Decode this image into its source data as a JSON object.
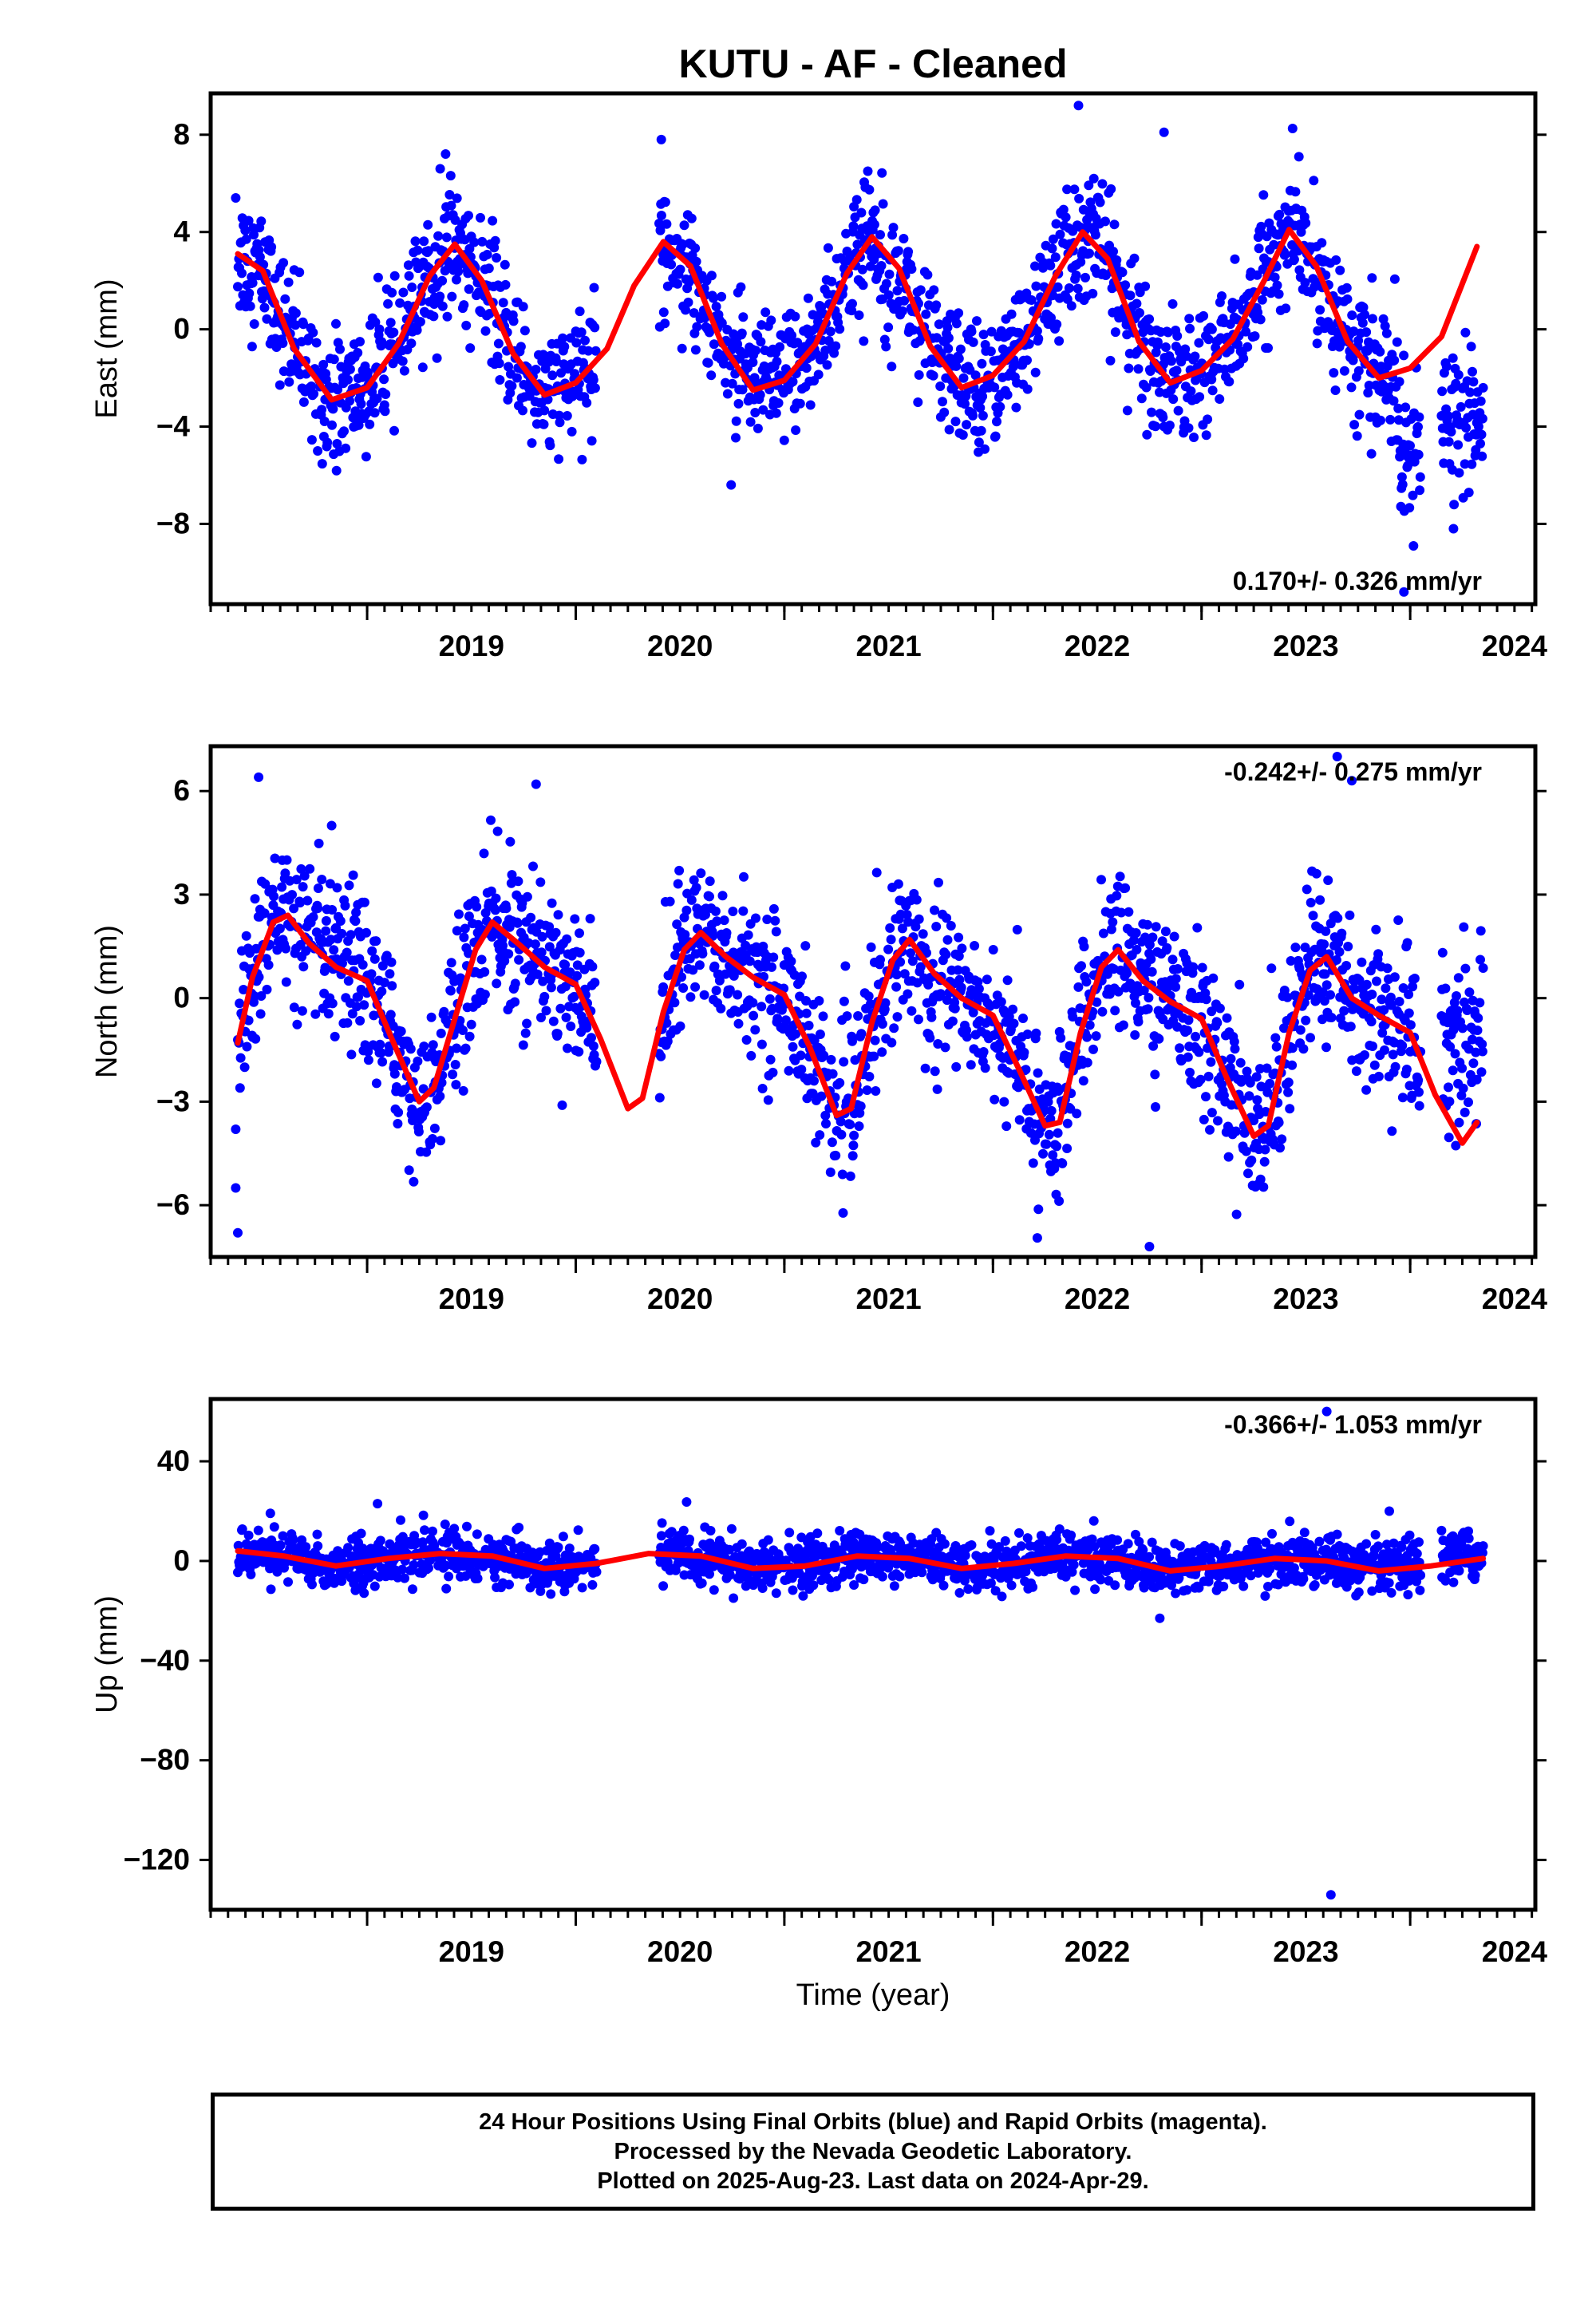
{
  "chart_data": {
    "type": "scatter",
    "title": "KUTU  - AF - Cleaned",
    "xlabel": "Time (year)",
    "xlim": [
      2018.25,
      2024.6
    ],
    "x_ticks": [
      2019,
      2020,
      2021,
      2022,
      2023,
      2024
    ],
    "x_tick_labels": [
      "2019",
      "2020",
      "2021",
      "2022",
      "2023",
      "2024"
    ],
    "colors": {
      "points": "#0000ff",
      "fit": "#ff0000",
      "axis": "#000000"
    },
    "panels": [
      {
        "name": "east",
        "ylabel": "East (mm)",
        "ylim": [
          -11.3,
          9.7
        ],
        "y_ticks": [
          -8,
          -4,
          0,
          4,
          8
        ],
        "y_tick_labels": [
          "−8",
          "−4",
          "0",
          "4",
          "8"
        ],
        "rate_text": "0.170+/- 0.326 mm/yr",
        "rate_position": "bottom-right",
        "fit_x": [
          2018.38,
          2018.5,
          2018.65,
          2018.83,
          2019.0,
          2019.15,
          2019.3,
          2019.42,
          2019.55,
          2019.7,
          2019.85,
          2020.0,
          2020.15,
          2020.28,
          2020.42,
          2020.55,
          2020.7,
          2020.85,
          2021.0,
          2021.15,
          2021.3,
          2021.42,
          2021.55,
          2021.7,
          2021.85,
          2022.0,
          2022.15,
          2022.3,
          2022.43,
          2022.55,
          2022.7,
          2022.85,
          2023.0,
          2023.15,
          2023.3,
          2023.42,
          2023.55,
          2023.7,
          2023.85,
          2024.0,
          2024.15,
          2024.32
        ],
        "fit_y": [
          3.1,
          2.4,
          -0.8,
          -2.9,
          -2.4,
          -0.6,
          2.2,
          3.5,
          2.0,
          -1.0,
          -2.7,
          -2.2,
          -0.8,
          1.8,
          3.6,
          2.6,
          -0.6,
          -2.5,
          -2.1,
          -0.6,
          2.3,
          3.8,
          2.5,
          -0.7,
          -2.4,
          -1.9,
          -0.5,
          2.2,
          4.0,
          2.9,
          -0.5,
          -2.2,
          -1.7,
          -0.4,
          2.0,
          4.1,
          2.6,
          -0.5,
          -2.0,
          -1.6,
          -0.3,
          3.4
        ],
        "scatter": [
          {
            "x0": 2018.38,
            "x1": 2018.5,
            "amp": 3.1,
            "phase": -1.0,
            "sd": 1.3
          },
          {
            "x0": 2018.5,
            "x1": 2020.1,
            "amp": 3.2,
            "phase": 0.0,
            "sd": 1.3
          },
          {
            "x0": 2020.4,
            "x1": 2023.95,
            "amp": 3.4,
            "phase": 0.0,
            "sd": 1.3
          },
          {
            "x0": 2023.95,
            "x1": 2024.05,
            "amp": 0.0,
            "phase": 0.0,
            "sd": 1.6,
            "offset": -5.2
          },
          {
            "x0": 2024.15,
            "x1": 2024.35,
            "amp": 0.0,
            "phase": 0.0,
            "sd": 1.4,
            "offset": -3.8
          }
        ],
        "outliers": [
          [
            2022.82,
            8.1
          ],
          [
            2022.41,
            9.2
          ],
          [
            2020.41,
            7.8
          ],
          [
            2023.97,
            -10.8
          ],
          [
            2018.37,
            5.4
          ],
          [
            2021.4,
            6.5
          ],
          [
            2019.35,
            6.6
          ]
        ]
      },
      {
        "name": "north",
        "ylabel": "North (mm)",
        "ylim": [
          -7.5,
          7.3
        ],
        "y_ticks": [
          -6,
          -3,
          0,
          3,
          6
        ],
        "y_tick_labels": [
          "−6",
          "−3",
          "0",
          "3",
          "6"
        ],
        "rate_text": "-0.242+/- 0.275 mm/yr",
        "rate_position": "top-right",
        "fit_x": [
          2018.38,
          2018.45,
          2018.55,
          2018.62,
          2018.72,
          2018.85,
          2019.0,
          2019.12,
          2019.25,
          2019.32,
          2019.42,
          2019.52,
          2019.6,
          2019.72,
          2019.85,
          2020.0,
          2020.12,
          2020.25,
          2020.32,
          2020.42,
          2020.52,
          2020.6,
          2020.72,
          2020.85,
          2021.0,
          2021.12,
          2021.25,
          2021.32,
          2021.42,
          2021.52,
          2021.6,
          2021.72,
          2021.85,
          2022.0,
          2022.12,
          2022.25,
          2022.32,
          2022.42,
          2022.52,
          2022.6,
          2022.72,
          2022.85,
          2023.0,
          2023.12,
          2023.25,
          2023.32,
          2023.42,
          2023.52,
          2023.6,
          2023.72,
          2023.85,
          2024.0,
          2024.12,
          2024.25,
          2024.32
        ],
        "fit_y": [
          -1.3,
          0.6,
          2.2,
          2.4,
          1.6,
          0.9,
          0.5,
          -1.2,
          -3.0,
          -2.6,
          -0.6,
          1.4,
          2.2,
          1.6,
          0.9,
          0.4,
          -1.2,
          -3.2,
          -2.9,
          -0.4,
          1.4,
          1.9,
          1.2,
          0.6,
          0.1,
          -1.4,
          -3.4,
          -3.2,
          -0.7,
          1.1,
          1.7,
          0.7,
          0.0,
          -0.5,
          -2.0,
          -3.7,
          -3.6,
          -1.0,
          0.9,
          1.4,
          0.5,
          -0.1,
          -0.6,
          -2.3,
          -4.0,
          -3.7,
          -1.0,
          0.8,
          1.2,
          0.0,
          -0.5,
          -1.0,
          -2.8,
          -4.2,
          -3.6
        ],
        "scatter": [
          {
            "x0": 2018.38,
            "x1": 2020.1,
            "amp": 2.6,
            "phase": 0.0,
            "sd": 1.1,
            "shape": "north"
          },
          {
            "x0": 2020.4,
            "x1": 2024.05,
            "amp": 2.6,
            "phase": 0.0,
            "sd": 1.1,
            "shape": "north"
          },
          {
            "x0": 2024.15,
            "x1": 2024.35,
            "amp": 0.0,
            "phase": 0.0,
            "sd": 1.2,
            "offset": -1.2
          }
        ],
        "outliers": [
          [
            2018.38,
            -6.8
          ],
          [
            2018.37,
            -5.5
          ],
          [
            2018.37,
            -3.8
          ],
          [
            2018.48,
            6.4
          ],
          [
            2022.75,
            -7.2
          ],
          [
            2023.65,
            7.0
          ],
          [
            2023.72,
            6.3
          ],
          [
            2019.81,
            6.2
          ],
          [
            2018.83,
            5.0
          ]
        ]
      },
      {
        "name": "up",
        "ylabel": "Up (mm)",
        "ylim": [
          -140,
          65
        ],
        "y_ticks": [
          -120,
          -80,
          -40,
          0,
          40
        ],
        "y_tick_labels": [
          "−120",
          "−80",
          "−40",
          "0",
          "40"
        ],
        "rate_text": "-0.366+/- 1.053 mm/yr",
        "rate_position": "top-right",
        "fit_x": [
          2018.38,
          2018.6,
          2018.85,
          2019.1,
          2019.35,
          2019.6,
          2019.85,
          2020.1,
          2020.35,
          2020.6,
          2020.85,
          2021.1,
          2021.35,
          2021.6,
          2021.85,
          2022.1,
          2022.35,
          2022.6,
          2022.85,
          2023.1,
          2023.35,
          2023.6,
          2023.85,
          2024.1,
          2024.35
        ],
        "fit_y": [
          4,
          2,
          -2,
          1,
          3,
          2,
          -3,
          -1,
          3,
          2,
          -3,
          -2,
          2,
          1,
          -3,
          -1,
          2,
          1,
          -4,
          -2,
          1,
          0,
          -4,
          -2,
          1
        ],
        "scatter": [
          {
            "x0": 2018.38,
            "x1": 2020.1,
            "amp": 3.0,
            "phase": 0.0,
            "sd": 5.0
          },
          {
            "x0": 2020.4,
            "x1": 2024.05,
            "amp": 3.0,
            "phase": 0.0,
            "sd": 5.0
          },
          {
            "x0": 2024.15,
            "x1": 2024.35,
            "amp": 0.0,
            "phase": 0.0,
            "sd": 5.0,
            "offset": 2.0
          }
        ],
        "outliers": [
          [
            2023.62,
            -134
          ],
          [
            2023.6,
            60
          ],
          [
            2019.05,
            23
          ],
          [
            2023.9,
            20
          ],
          [
            2022.8,
            -23
          ]
        ]
      }
    ]
  },
  "footer": {
    "line1": "24 Hour Positions Using Final Orbits (blue) and Rapid Orbits (magenta).",
    "line2": "Processed by the Nevada Geodetic Laboratory.",
    "line3": "Plotted on 2025-Aug-23. Last data on 2024-Apr-29."
  }
}
